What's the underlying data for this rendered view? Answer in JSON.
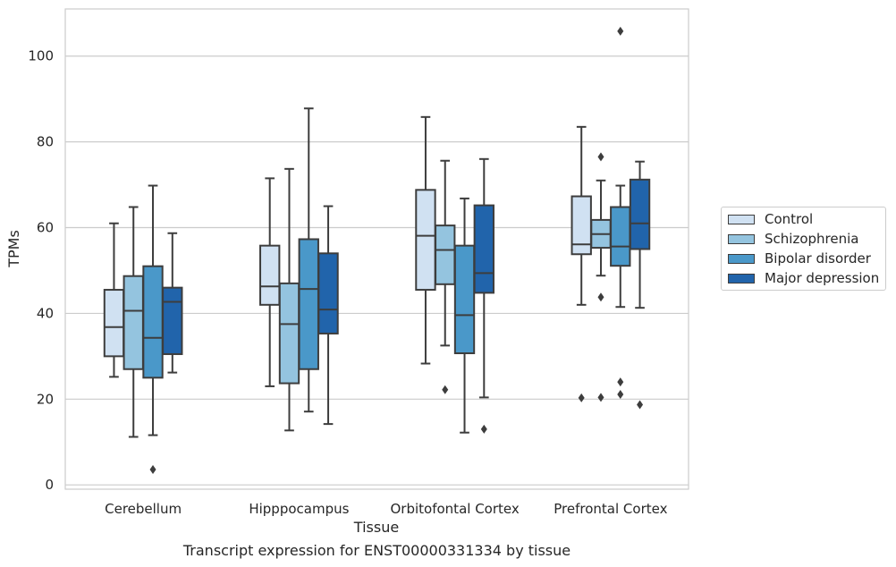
{
  "chart_data": {
    "type": "box",
    "caption": "Transcript expression for ENST00000331334 by tissue",
    "xlabel": "Tissue",
    "ylabel": "TPMs",
    "ylim": [
      -1,
      111
    ],
    "yticks": [
      0,
      20,
      40,
      60,
      80,
      100
    ],
    "grid": "horizontal",
    "legend_position": "right",
    "categories": [
      "Cerebellum",
      "Hipppocampus",
      "Orbitofontal Cortex",
      "Prefrontal Cortex"
    ],
    "series": [
      {
        "name": "Control",
        "color": "#d0e1f2",
        "boxes": [
          {
            "whislo": 25.2,
            "q1": 30.0,
            "med": 36.8,
            "q3": 45.5,
            "whishi": 61.0,
            "fliers": []
          },
          {
            "whislo": 23.0,
            "q1": 42.0,
            "med": 46.3,
            "q3": 55.8,
            "whishi": 71.5,
            "fliers": []
          },
          {
            "whislo": 28.3,
            "q1": 45.5,
            "med": 58.1,
            "q3": 68.8,
            "whishi": 85.8,
            "fliers": []
          },
          {
            "whislo": 42.0,
            "q1": 53.8,
            "med": 56.1,
            "q3": 67.3,
            "whishi": 83.5,
            "fliers": [
              20.3
            ]
          }
        ]
      },
      {
        "name": "Schizophrenia",
        "color": "#94c4df",
        "boxes": [
          {
            "whislo": 11.2,
            "q1": 27.0,
            "med": 40.6,
            "q3": 48.7,
            "whishi": 64.8,
            "fliers": []
          },
          {
            "whislo": 12.7,
            "q1": 23.7,
            "med": 37.5,
            "q3": 47.0,
            "whishi": 73.7,
            "fliers": []
          },
          {
            "whislo": 32.5,
            "q1": 46.8,
            "med": 54.8,
            "q3": 60.5,
            "whishi": 75.6,
            "fliers": [
              22.2
            ]
          },
          {
            "whislo": 48.8,
            "q1": 55.3,
            "med": 58.5,
            "q3": 61.8,
            "whishi": 71.0,
            "fliers": [
              76.5,
              43.8,
              20.4
            ]
          }
        ]
      },
      {
        "name": "Bipolar disorder",
        "color": "#4a98c9",
        "boxes": [
          {
            "whislo": 11.6,
            "q1": 25.0,
            "med": 34.3,
            "q3": 51.0,
            "whishi": 69.8,
            "fliers": [
              3.6
            ]
          },
          {
            "whislo": 17.1,
            "q1": 27.0,
            "med": 45.7,
            "q3": 57.3,
            "whishi": 87.8,
            "fliers": []
          },
          {
            "whislo": 12.2,
            "q1": 30.7,
            "med": 39.6,
            "q3": 55.8,
            "whishi": 66.8,
            "fliers": []
          },
          {
            "whislo": 41.5,
            "q1": 51.1,
            "med": 55.6,
            "q3": 64.8,
            "whishi": 69.8,
            "fliers": [
              105.8,
              24.0,
              21.1
            ]
          }
        ]
      },
      {
        "name": "Major depression",
        "color": "#2164ab",
        "boxes": [
          {
            "whislo": 26.2,
            "q1": 30.5,
            "med": 42.7,
            "q3": 46.0,
            "whishi": 58.7,
            "fliers": []
          },
          {
            "whislo": 14.2,
            "q1": 35.3,
            "med": 40.9,
            "q3": 54.0,
            "whishi": 65.0,
            "fliers": []
          },
          {
            "whislo": 20.4,
            "q1": 44.8,
            "med": 49.4,
            "q3": 65.2,
            "whishi": 76.0,
            "fliers": [
              13.0
            ]
          },
          {
            "whislo": 41.3,
            "q1": 55.0,
            "med": 61.0,
            "q3": 71.2,
            "whishi": 75.4,
            "fliers": [
              18.7
            ]
          }
        ]
      }
    ]
  }
}
